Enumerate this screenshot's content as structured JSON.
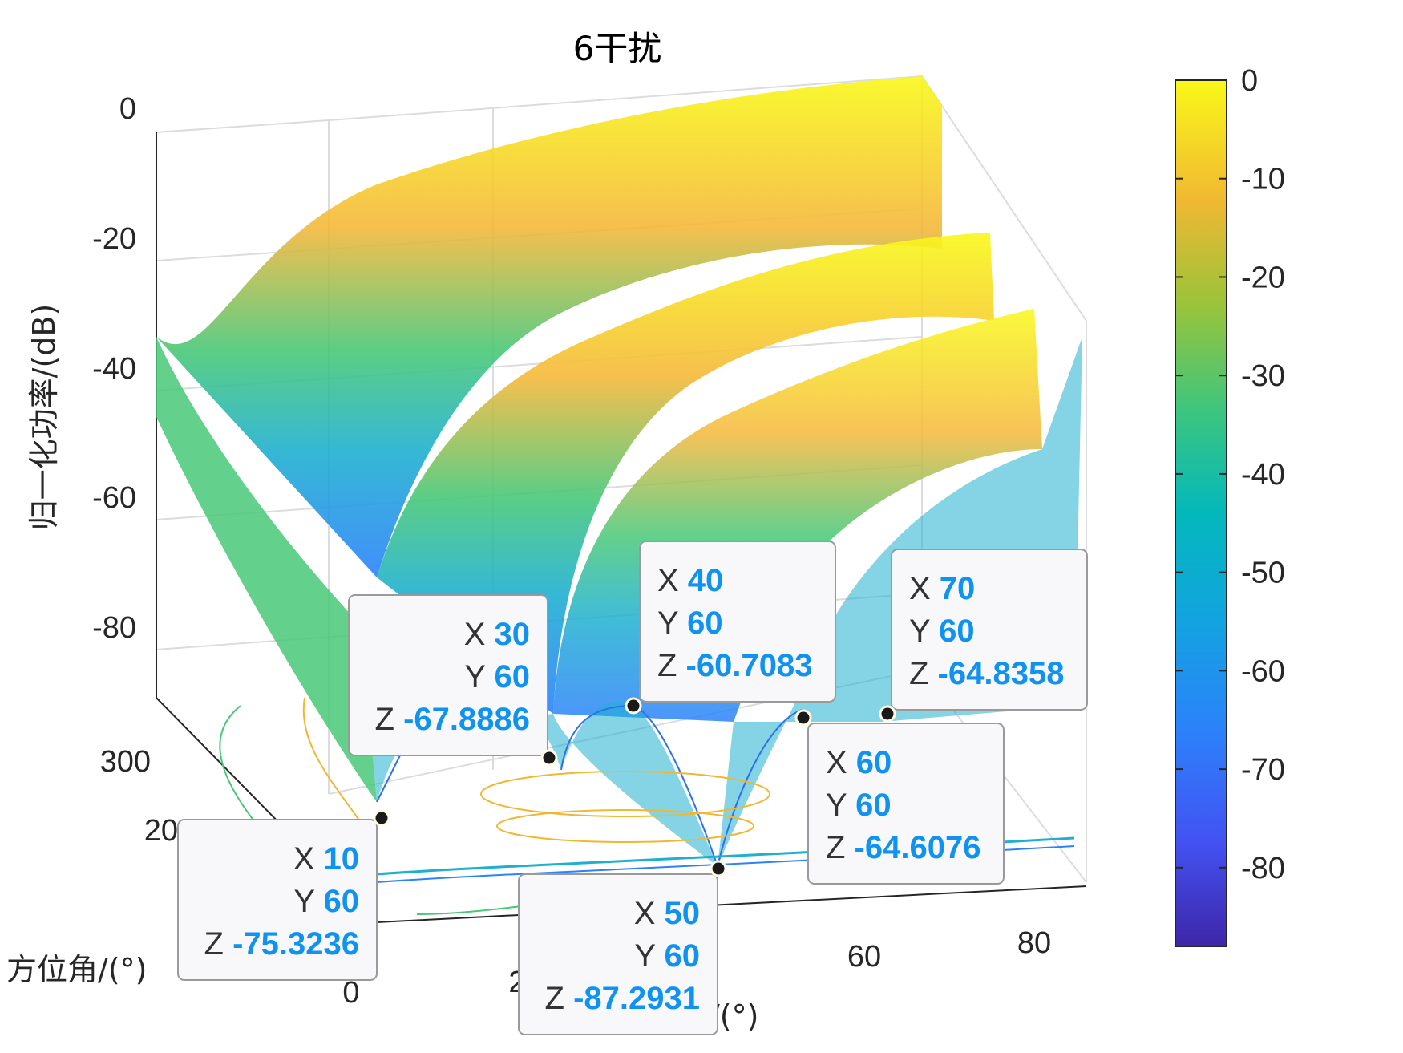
{
  "chart_data": {
    "type": "surface",
    "title": "6干扰",
    "zlabel": "归一化功率/(dB)",
    "ylabel": "方位角/(°)",
    "xlabel": "/(°)",
    "zlim": [
      -90,
      0
    ],
    "z_ticks": [
      "0",
      "-20",
      "-40",
      "-60",
      "-80"
    ],
    "x_ticks": [
      "0",
      "2",
      "60",
      "80"
    ],
    "y_ticks": [
      "300",
      "20"
    ],
    "colorbar": {
      "ticks": [
        "0",
        "-10",
        "-20",
        "-30",
        "-40",
        "-50",
        "-60",
        "-70",
        "-80"
      ],
      "range": [
        -88,
        0
      ],
      "colormap": "parula"
    },
    "datatips": [
      {
        "x": 10,
        "y": 60,
        "z": -75.3236
      },
      {
        "x": 30,
        "y": 60,
        "z": -67.8886
      },
      {
        "x": 40,
        "y": 60,
        "z": -60.7083
      },
      {
        "x": 50,
        "y": 60,
        "z": -87.2931
      },
      {
        "x": 60,
        "y": 60,
        "z": -64.6076
      },
      {
        "x": 70,
        "y": 60,
        "z": -64.8358
      }
    ],
    "datatip_keys": {
      "x": "X",
      "y": "Y",
      "z": "Z"
    },
    "grid": true
  }
}
